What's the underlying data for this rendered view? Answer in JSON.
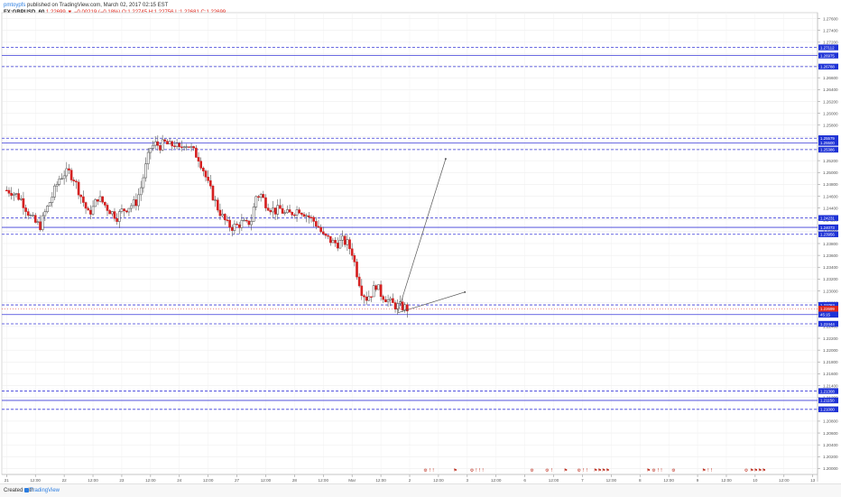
{
  "header": {
    "user": "pmtoypfs",
    "published": "published on TradingView.com, March 02, 2017 02:15 EST",
    "symbol_line_prefix": "FX:GBPUSD, 60",
    "last": "1.22699",
    "change": "▼ −0.00219 (−0.18%)",
    "ohlc": "O:1.22745 H:1.22756 L:1.22681 C:1.22699"
  },
  "footer": {
    "created_with": "Created with",
    "brand": "TradingView"
  },
  "chart_data": {
    "type": "candlestick",
    "title": "",
    "xlabel": "",
    "ylabel": "",
    "ylim": [
      1.199,
      1.277
    ],
    "y_ticks": [
      "1.27600",
      "1.27400",
      "1.27200",
      "1.27000",
      "1.26800",
      "1.26600",
      "1.26400",
      "1.26200",
      "1.26000",
      "1.25800",
      "1.25600",
      "1.25400",
      "1.25200",
      "1.25000",
      "1.24800",
      "1.24600",
      "1.24400",
      "1.24200",
      "1.24000",
      "1.23800",
      "1.23600",
      "1.23400",
      "1.23200",
      "1.23000",
      "1.22800",
      "1.22600",
      "1.22400",
      "1.22200",
      "1.22000",
      "1.21800",
      "1.21600",
      "1.21400",
      "1.21200",
      "1.21000",
      "1.20800",
      "1.20600",
      "1.20400",
      "1.20200",
      "1.20000"
    ],
    "x_ticks": [
      {
        "label": "21",
        "pos": 0
      },
      {
        "label": "12:00",
        "pos": 12
      },
      {
        "label": "22",
        "pos": 24
      },
      {
        "label": "12:00",
        "pos": 36
      },
      {
        "label": "23",
        "pos": 48
      },
      {
        "label": "12:00",
        "pos": 60
      },
      {
        "label": "24",
        "pos": 72
      },
      {
        "label": "12:00",
        "pos": 84
      },
      {
        "label": "27",
        "pos": 96
      },
      {
        "label": "12:00",
        "pos": 108
      },
      {
        "label": "28",
        "pos": 120
      },
      {
        "label": "12:00",
        "pos": 132
      },
      {
        "label": "Mar",
        "pos": 144
      },
      {
        "label": "12:00",
        "pos": 156
      },
      {
        "label": "2",
        "pos": 168
      },
      {
        "label": "12:00",
        "pos": 180
      },
      {
        "label": "3",
        "pos": 192
      },
      {
        "label": "12:00",
        "pos": 204
      },
      {
        "label": "6",
        "pos": 216
      },
      {
        "label": "12:00",
        "pos": 228
      },
      {
        "label": "7",
        "pos": 240
      },
      {
        "label": "12:00",
        "pos": 252
      },
      {
        "label": "8",
        "pos": 264
      },
      {
        "label": "12:00",
        "pos": 276
      },
      {
        "label": "9",
        "pos": 288
      },
      {
        "label": "12:00",
        "pos": 300
      },
      {
        "label": "10",
        "pos": 312
      },
      {
        "label": "12:00",
        "pos": 324
      },
      {
        "label": "13",
        "pos": 336
      }
    ],
    "x_range": [
      -2,
      338
    ],
    "close_keypoints": [
      [
        0,
        1.247
      ],
      [
        2,
        1.2468
      ],
      [
        4,
        1.2462
      ],
      [
        6,
        1.2455
      ],
      [
        8,
        1.244
      ],
      [
        10,
        1.2425
      ],
      [
        12,
        1.2415
      ],
      [
        14,
        1.241
      ],
      [
        16,
        1.2432
      ],
      [
        18,
        1.245
      ],
      [
        20,
        1.247
      ],
      [
        22,
        1.249
      ],
      [
        24,
        1.2498
      ],
      [
        26,
        1.25
      ],
      [
        28,
        1.249
      ],
      [
        30,
        1.247
      ],
      [
        32,
        1.245
      ],
      [
        34,
        1.243
      ],
      [
        36,
        1.244
      ],
      [
        38,
        1.2458
      ],
      [
        40,
        1.245
      ],
      [
        42,
        1.244
      ],
      [
        44,
        1.2432
      ],
      [
        46,
        1.2425
      ],
      [
        48,
        1.2435
      ],
      [
        50,
        1.244
      ],
      [
        52,
        1.2445
      ],
      [
        54,
        1.245
      ],
      [
        56,
        1.2475
      ],
      [
        58,
        1.251
      ],
      [
        60,
        1.2542
      ],
      [
        62,
        1.2548
      ],
      [
        64,
        1.2545
      ],
      [
        66,
        1.255
      ],
      [
        68,
        1.2545
      ],
      [
        70,
        1.2548
      ],
      [
        72,
        1.2538
      ],
      [
        74,
        1.255
      ],
      [
        76,
        1.2545
      ],
      [
        78,
        1.2535
      ],
      [
        80,
        1.2525
      ],
      [
        82,
        1.2505
      ],
      [
        84,
        1.248
      ],
      [
        86,
        1.246
      ],
      [
        88,
        1.244
      ],
      [
        90,
        1.2425
      ],
      [
        92,
        1.2412
      ],
      [
        94,
        1.2408
      ],
      [
        96,
        1.241
      ],
      [
        98,
        1.2415
      ],
      [
        100,
        1.2412
      ],
      [
        102,
        1.242
      ],
      [
        104,
        1.246
      ],
      [
        106,
        1.2462
      ],
      [
        108,
        1.2448
      ],
      [
        110,
        1.244
      ],
      [
        112,
        1.2435
      ],
      [
        114,
        1.2438
      ],
      [
        116,
        1.243
      ],
      [
        118,
        1.243
      ],
      [
        120,
        1.2435
      ],
      [
        122,
        1.2438
      ],
      [
        124,
        1.2432
      ],
      [
        126,
        1.2425
      ],
      [
        128,
        1.2418
      ],
      [
        130,
        1.2408
      ],
      [
        132,
        1.2392
      ],
      [
        134,
        1.2388
      ],
      [
        136,
        1.2382
      ],
      [
        138,
        1.238
      ],
      [
        140,
        1.2385
      ],
      [
        142,
        1.238
      ],
      [
        144,
        1.2365
      ],
      [
        146,
        1.233
      ],
      [
        148,
        1.23
      ],
      [
        150,
        1.2288
      ],
      [
        152,
        1.2296
      ],
      [
        154,
        1.231
      ],
      [
        156,
        1.2295
      ],
      [
        158,
        1.2288
      ],
      [
        160,
        1.228
      ],
      [
        162,
        1.2275
      ],
      [
        164,
        1.2274
      ],
      [
        166,
        1.2272
      ],
      [
        167,
        1.227
      ]
    ],
    "annotations": {
      "levels": [
        {
          "price": 1.27112,
          "label": "1.27112",
          "style": "dashed"
        },
        {
          "price": 1.26975,
          "label": "1.26975",
          "style": "solid"
        },
        {
          "price": 1.26788,
          "label": "1.26788",
          "style": "dashed"
        },
        {
          "price": 1.25579,
          "label": "1.25579",
          "style": "dashed"
        },
        {
          "price": 1.255,
          "label": "1.25500",
          "style": "solid"
        },
        {
          "price": 1.25386,
          "label": "1.25386",
          "style": "dashed"
        },
        {
          "price": 1.24231,
          "label": "1.24231",
          "style": "dashed"
        },
        {
          "price": 1.24073,
          "label": "1.24073",
          "style": "solid"
        },
        {
          "price": 1.23956,
          "label": "1.23956",
          "style": "dashed"
        },
        {
          "price": 1.22763,
          "label": "1.22763",
          "style": "dashed"
        },
        {
          "price": 1.226,
          "label": "1.22600",
          "style": "solid"
        },
        {
          "price": 1.22444,
          "label": "1.22444",
          "style": "dashed"
        },
        {
          "price": 1.21308,
          "label": "1.21308",
          "style": "dashed"
        },
        {
          "price": 1.2115,
          "label": "1.21150",
          "style": "solid"
        },
        {
          "price": 1.21,
          "label": "1.21000",
          "style": "dashed"
        }
      ],
      "current_price": {
        "price": 1.22699,
        "label": "1.22699"
      },
      "countdown": {
        "label": "45:15"
      },
      "trendlines": [
        {
          "from": [
            163,
            1.2263
          ],
          "to": [
            183,
            1.2523
          ]
        },
        {
          "from": [
            163,
            1.2263
          ],
          "to": [
            191,
            1.2298
          ]
        }
      ]
    },
    "events_row": [
      {
        "pos": 176,
        "glyph": "⚙ ! !"
      },
      {
        "pos": 187,
        "glyph": "⚑"
      },
      {
        "pos": 196,
        "glyph": "⚙ ! ! !"
      },
      {
        "pos": 219,
        "glyph": "⚙"
      },
      {
        "pos": 226,
        "glyph": "⚙ !"
      },
      {
        "pos": 233,
        "glyph": "⚑"
      },
      {
        "pos": 240,
        "glyph": "⚙ ! !"
      },
      {
        "pos": 248,
        "glyph": "⚑⚑⚑⚑"
      },
      {
        "pos": 270,
        "glyph": "⚑ ⚙ ! !"
      },
      {
        "pos": 278,
        "glyph": "⚙"
      },
      {
        "pos": 292,
        "glyph": "⚑ ! !"
      },
      {
        "pos": 312,
        "glyph": "⚙ ⚑⚑⚑⚑"
      }
    ],
    "colors": {
      "up": "#ffffff",
      "down": "#d42020",
      "wick": "#555555",
      "level": "#3b3bd9",
      "axis_label_bg": "#1f33d6",
      "current_price_bg": "#e0261b",
      "grid": "#e9e9e9"
    },
    "grid": true
  }
}
